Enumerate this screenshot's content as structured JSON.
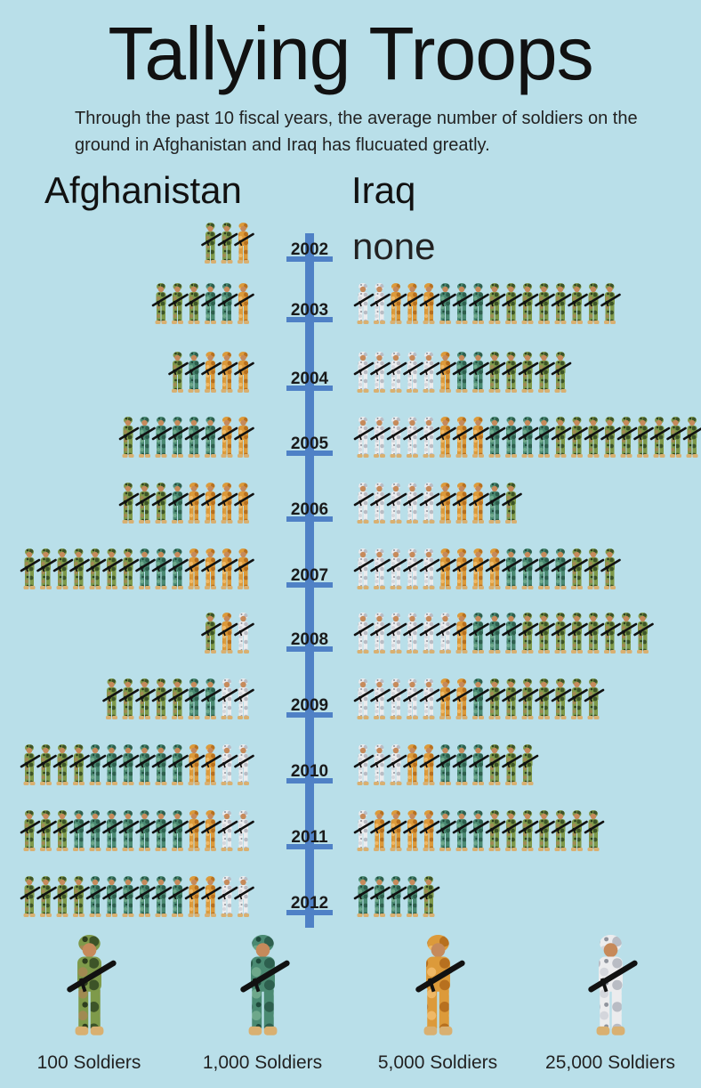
{
  "title": "Tallying Troops",
  "subtitle": "Through the past 10 fiscal years, the average number of soldiers on the ground in Afghanistan and Iraq has flucuated greatly.",
  "columns": {
    "left": "Afghanistan",
    "right": "Iraq"
  },
  "none_label": "none",
  "colors": {
    "background": "#b9dfe9",
    "timeline": "#4f81c6",
    "woodland": "#6f8a3e",
    "green": "#3f7f66",
    "desert": "#d9922f",
    "white": "#e8e8ea"
  },
  "chart_data": {
    "type": "pictograph",
    "unit_key": {
      "woodland": 100,
      "green": 1000,
      "desert": 5000,
      "white": 25000
    },
    "series": [
      {
        "name": "Afghanistan"
      },
      {
        "name": "Iraq"
      }
    ],
    "years": [
      {
        "year": "2002",
        "afghanistan": {
          "woodland": 2,
          "green": 0,
          "desert": 1,
          "white": 0
        },
        "iraq": null
      },
      {
        "year": "2003",
        "afghanistan": {
          "woodland": 3,
          "green": 2,
          "desert": 1,
          "white": 0
        },
        "iraq": {
          "woodland": 8,
          "green": 3,
          "desert": 3,
          "white": 2
        }
      },
      {
        "year": "2004",
        "afghanistan": {
          "woodland": 1,
          "green": 1,
          "desert": 3,
          "white": 0
        },
        "iraq": {
          "woodland": 5,
          "green": 2,
          "desert": 1,
          "white": 5
        }
      },
      {
        "year": "2005",
        "afghanistan": {
          "woodland": 1,
          "green": 5,
          "desert": 2,
          "white": 0
        },
        "iraq": {
          "woodland": 9,
          "green": 4,
          "desert": 3,
          "white": 5
        }
      },
      {
        "year": "2006",
        "afghanistan": {
          "woodland": 3,
          "green": 1,
          "desert": 4,
          "white": 0
        },
        "iraq": {
          "woodland": 1,
          "green": 1,
          "desert": 3,
          "white": 5
        }
      },
      {
        "year": "2007",
        "afghanistan": {
          "woodland": 7,
          "green": 3,
          "desert": 4,
          "white": 0
        },
        "iraq": {
          "woodland": 3,
          "green": 4,
          "desert": 4,
          "white": 5
        }
      },
      {
        "year": "2008",
        "afghanistan": {
          "woodland": 1,
          "green": 0,
          "desert": 1,
          "white": 1
        },
        "iraq": {
          "woodland": 8,
          "green": 3,
          "desert": 1,
          "white": 6
        }
      },
      {
        "year": "2009",
        "afghanistan": {
          "woodland": 5,
          "green": 2,
          "desert": 0,
          "white": 2
        },
        "iraq": {
          "woodland": 7,
          "green": 1,
          "desert": 2,
          "white": 5
        }
      },
      {
        "year": "2010",
        "afghanistan": {
          "woodland": 4,
          "green": 6,
          "desert": 2,
          "white": 2
        },
        "iraq": {
          "woodland": 3,
          "green": 3,
          "desert": 2,
          "white": 3
        }
      },
      {
        "year": "2011",
        "afghanistan": {
          "woodland": 3,
          "green": 7,
          "desert": 2,
          "white": 2
        },
        "iraq": {
          "woodland": 7,
          "green": 3,
          "desert": 4,
          "white": 1
        }
      },
      {
        "year": "2012",
        "afghanistan": {
          "woodland": 4,
          "green": 6,
          "desert": 2,
          "white": 2
        },
        "iraq": {
          "woodland": 1,
          "green": 4,
          "desert": 0,
          "white": 0
        }
      }
    ],
    "legend": [
      {
        "key": "woodland",
        "label": "100 Soldiers"
      },
      {
        "key": "green",
        "label": "1,000 Soldiers"
      },
      {
        "key": "desert",
        "label": "5,000 Soldiers"
      },
      {
        "key": "white",
        "label": "25,000 Soldiers"
      }
    ]
  }
}
